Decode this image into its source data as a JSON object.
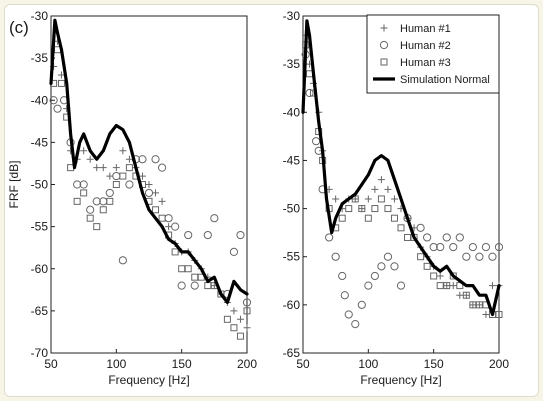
{
  "figure": {
    "panel_tag": "(c)"
  },
  "colors": {
    "background": "#f7f5e8",
    "panel": "#ffffff",
    "marker": "#666666",
    "simulation_line": "#000000"
  },
  "chart_data": [
    {
      "type": "line",
      "xlabel": "Frequency [Hz]",
      "ylabel": "FRF [dB]",
      "xlim": [
        50,
        200
      ],
      "ylim": [
        -70,
        -30
      ],
      "xticks": [
        50,
        100,
        150,
        200
      ],
      "yticks": [
        -30,
        -35,
        -40,
        -45,
        -50,
        -55,
        -60,
        -65,
        -70
      ],
      "grid": false,
      "series": [
        {
          "marker": "plus",
          "values": [
            [
              52,
              -36
            ],
            [
              55,
              -33
            ],
            [
              58,
              -37
            ],
            [
              62,
              -41
            ],
            [
              65,
              -46
            ],
            [
              70,
              -47
            ],
            [
              75,
              -46
            ],
            [
              80,
              -47
            ],
            [
              85,
              -48
            ],
            [
              90,
              -48
            ],
            [
              95,
              -49
            ],
            [
              100,
              -48
            ],
            [
              105,
              -46
            ],
            [
              110,
              -47
            ],
            [
              115,
              -48
            ],
            [
              120,
              -49
            ],
            [
              125,
              -50
            ],
            [
              130,
              -51
            ],
            [
              135,
              -52
            ],
            [
              140,
              -55
            ],
            [
              145,
              -57
            ],
            [
              150,
              -58
            ],
            [
              155,
              -58
            ],
            [
              160,
              -59
            ],
            [
              165,
              -60
            ],
            [
              170,
              -61
            ],
            [
              175,
              -62
            ],
            [
              180,
              -63
            ],
            [
              185,
              -64
            ],
            [
              190,
              -65
            ],
            [
              195,
              -66
            ],
            [
              200,
              -67
            ]
          ]
        },
        {
          "marker": "circle",
          "values": [
            [
              52,
              -40
            ],
            [
              55,
              -41
            ],
            [
              60,
              -40
            ],
            [
              65,
              -45
            ],
            [
              70,
              -50
            ],
            [
              75,
              -50
            ],
            [
              80,
              -53
            ],
            [
              85,
              -52
            ],
            [
              90,
              -52
            ],
            [
              95,
              -51
            ],
            [
              100,
              -49
            ],
            [
              105,
              -59
            ],
            [
              110,
              -50
            ],
            [
              115,
              -47
            ],
            [
              120,
              -47
            ],
            [
              125,
              -51
            ],
            [
              130,
              -47
            ],
            [
              135,
              -48
            ],
            [
              140,
              -54
            ],
            [
              145,
              -55
            ],
            [
              150,
              -62
            ],
            [
              155,
              -56
            ],
            [
              160,
              -62
            ],
            [
              170,
              -56
            ],
            [
              175,
              -54
            ],
            [
              185,
              -63
            ],
            [
              190,
              -58
            ],
            [
              195,
              -56
            ],
            [
              200,
              -64
            ]
          ]
        },
        {
          "marker": "square",
          "values": [
            [
              52,
              -38
            ],
            [
              55,
              -34
            ],
            [
              58,
              -38
            ],
            [
              62,
              -42
            ],
            [
              65,
              -48
            ],
            [
              70,
              -52
            ],
            [
              75,
              -51
            ],
            [
              80,
              -54
            ],
            [
              85,
              -55
            ],
            [
              90,
              -53
            ],
            [
              95,
              -52
            ],
            [
              100,
              -50
            ],
            [
              105,
              -49
            ],
            [
              110,
              -48
            ],
            [
              115,
              -49
            ],
            [
              120,
              -50
            ],
            [
              125,
              -52
            ],
            [
              130,
              -53
            ],
            [
              135,
              -54
            ],
            [
              140,
              -56
            ],
            [
              145,
              -58
            ],
            [
              150,
              -60
            ],
            [
              155,
              -60
            ],
            [
              160,
              -61
            ],
            [
              165,
              -61
            ],
            [
              170,
              -62
            ],
            [
              175,
              -62
            ],
            [
              180,
              -63
            ],
            [
              185,
              -66
            ],
            [
              190,
              -67
            ],
            [
              195,
              -68
            ],
            [
              200,
              -65
            ]
          ]
        },
        {
          "marker": "line",
          "values": [
            [
              50,
              -38
            ],
            [
              53,
              -30.5
            ],
            [
              55,
              -32
            ],
            [
              58,
              -34
            ],
            [
              62,
              -38
            ],
            [
              65,
              -44
            ],
            [
              68,
              -48
            ],
            [
              72,
              -45
            ],
            [
              75,
              -44
            ],
            [
              80,
              -46
            ],
            [
              85,
              -47
            ],
            [
              90,
              -46
            ],
            [
              95,
              -44
            ],
            [
              100,
              -43
            ],
            [
              105,
              -43.5
            ],
            [
              110,
              -45
            ],
            [
              115,
              -48
            ],
            [
              120,
              -51
            ],
            [
              125,
              -53
            ],
            [
              130,
              -54
            ],
            [
              135,
              -55
            ],
            [
              140,
              -56.5
            ],
            [
              145,
              -57
            ],
            [
              150,
              -58
            ],
            [
              155,
              -58
            ],
            [
              160,
              -59
            ],
            [
              165,
              -60
            ],
            [
              170,
              -61.5
            ],
            [
              175,
              -61
            ],
            [
              180,
              -63
            ],
            [
              185,
              -64
            ],
            [
              190,
              -61.5
            ],
            [
              195,
              -62.5
            ],
            [
              200,
              -63
            ]
          ]
        }
      ]
    },
    {
      "type": "line",
      "xlabel": "Frequency [Hz]",
      "ylabel": "",
      "xlim": [
        50,
        200
      ],
      "ylim": [
        -65,
        -30
      ],
      "xticks": [
        50,
        100,
        150,
        200
      ],
      "yticks": [
        -30,
        -35,
        -40,
        -45,
        -50,
        -55,
        -60,
        -65
      ],
      "grid": false,
      "legend": {
        "position": "top-right",
        "entries": [
          "Human #1",
          "Human #2",
          "Human #3",
          "Simulation Normal"
        ]
      },
      "series": [
        {
          "name": "Human #1",
          "marker": "plus",
          "values": [
            [
              52,
              -32
            ],
            [
              55,
              -35
            ],
            [
              58,
              -37
            ],
            [
              62,
              -40
            ],
            [
              65,
              -44
            ],
            [
              70,
              -48
            ],
            [
              75,
              -49
            ],
            [
              80,
              -50
            ],
            [
              85,
              -49
            ],
            [
              90,
              -49
            ],
            [
              95,
              -50
            ],
            [
              100,
              -49
            ],
            [
              105,
              -48
            ],
            [
              110,
              -47
            ],
            [
              115,
              -48
            ],
            [
              120,
              -49
            ],
            [
              125,
              -50
            ],
            [
              130,
              -51
            ],
            [
              135,
              -52
            ],
            [
              140,
              -54
            ],
            [
              145,
              -55
            ],
            [
              150,
              -56
            ],
            [
              155,
              -57
            ],
            [
              160,
              -58
            ],
            [
              165,
              -58
            ],
            [
              170,
              -59
            ],
            [
              175,
              -59
            ],
            [
              180,
              -60
            ],
            [
              185,
              -60
            ],
            [
              190,
              -61
            ],
            [
              195,
              -58
            ],
            [
              200,
              -58
            ]
          ]
        },
        {
          "name": "Human #2",
          "marker": "circle",
          "values": [
            [
              52,
              -34
            ],
            [
              55,
              -38
            ],
            [
              60,
              -43
            ],
            [
              62,
              -44
            ],
            [
              65,
              -48
            ],
            [
              70,
              -53
            ],
            [
              75,
              -55
            ],
            [
              80,
              -57
            ],
            [
              82,
              -59
            ],
            [
              85,
              -61
            ],
            [
              90,
              -62
            ],
            [
              95,
              -60
            ],
            [
              100,
              -58
            ],
            [
              105,
              -57
            ],
            [
              110,
              -56
            ],
            [
              115,
              -55
            ],
            [
              120,
              -56
            ],
            [
              125,
              -58
            ],
            [
              130,
              -51
            ],
            [
              140,
              -52
            ],
            [
              145,
              -53
            ],
            [
              150,
              -54
            ],
            [
              155,
              -54
            ],
            [
              160,
              -53
            ],
            [
              165,
              -54
            ],
            [
              170,
              -53
            ],
            [
              175,
              -55
            ],
            [
              180,
              -54
            ],
            [
              185,
              -55
            ],
            [
              190,
              -54
            ],
            [
              195,
              -55
            ],
            [
              200,
              -54
            ]
          ]
        },
        {
          "name": "Human #3",
          "marker": "square",
          "values": [
            [
              52,
              -33
            ],
            [
              55,
              -36
            ],
            [
              58,
              -38
            ],
            [
              62,
              -42
            ],
            [
              65,
              -45
            ],
            [
              70,
              -50
            ],
            [
              75,
              -52
            ],
            [
              80,
              -51
            ],
            [
              85,
              -50
            ],
            [
              90,
              -49
            ],
            [
              95,
              -50
            ],
            [
              100,
              -51
            ],
            [
              105,
              -50
            ],
            [
              110,
              -49
            ],
            [
              115,
              -50
            ],
            [
              120,
              -51
            ],
            [
              125,
              -52
            ],
            [
              130,
              -53
            ],
            [
              135,
              -53
            ],
            [
              140,
              -55
            ],
            [
              145,
              -56
            ],
            [
              150,
              -57
            ],
            [
              155,
              -58
            ],
            [
              160,
              -58
            ],
            [
              165,
              -57
            ],
            [
              170,
              -58
            ],
            [
              175,
              -59
            ],
            [
              180,
              -60
            ],
            [
              185,
              -60
            ],
            [
              190,
              -60
            ],
            [
              195,
              -61
            ],
            [
              200,
              -61
            ]
          ]
        },
        {
          "name": "Simulation Normal",
          "marker": "line",
          "values": [
            [
              50,
              -40
            ],
            [
              53,
              -30.5
            ],
            [
              55,
              -32
            ],
            [
              58,
              -36
            ],
            [
              62,
              -41
            ],
            [
              65,
              -44
            ],
            [
              68,
              -49
            ],
            [
              72,
              -52.5
            ],
            [
              75,
              -51
            ],
            [
              80,
              -49.5
            ],
            [
              85,
              -49
            ],
            [
              90,
              -48.5
            ],
            [
              95,
              -47.5
            ],
            [
              100,
              -46.5
            ],
            [
              105,
              -45
            ],
            [
              110,
              -44.5
            ],
            [
              115,
              -45
            ],
            [
              120,
              -47
            ],
            [
              125,
              -49
            ],
            [
              130,
              -51
            ],
            [
              135,
              -53
            ],
            [
              140,
              -54
            ],
            [
              145,
              -55
            ],
            [
              150,
              -56
            ],
            [
              155,
              -56.5
            ],
            [
              160,
              -56
            ],
            [
              165,
              -57
            ],
            [
              170,
              -57.5
            ],
            [
              175,
              -58
            ],
            [
              180,
              -58
            ],
            [
              185,
              -59
            ],
            [
              190,
              -59
            ],
            [
              195,
              -61
            ],
            [
              200,
              -58
            ]
          ]
        }
      ]
    }
  ]
}
